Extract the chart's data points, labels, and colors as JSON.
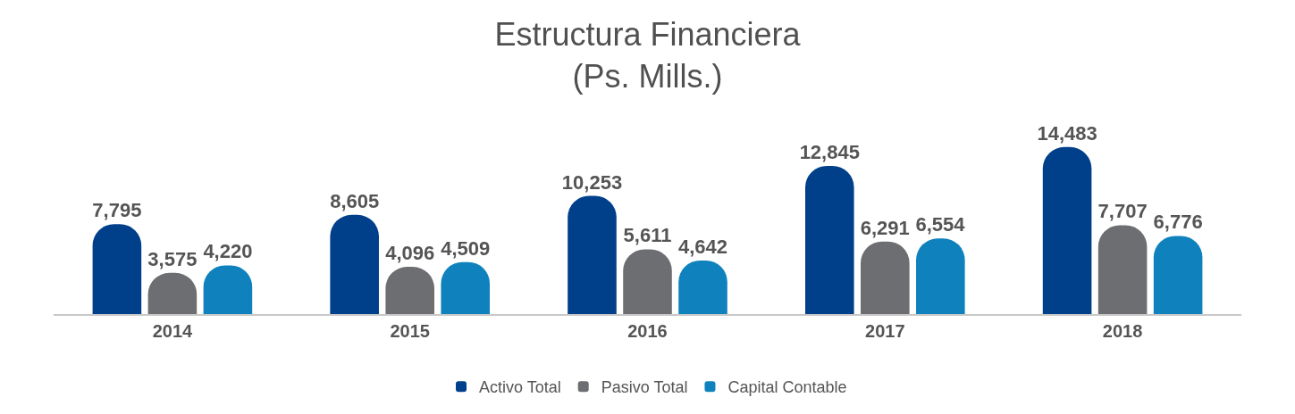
{
  "chart_data": {
    "type": "bar",
    "title": "Estructura Financiera\n(Ps. Mills.)",
    "categories": [
      "2014",
      "2015",
      "2016",
      "2017",
      "2018"
    ],
    "series": [
      {
        "name": "Activo Total",
        "color": "#003f8a",
        "values": [
          7795,
          8605,
          10253,
          12845,
          14483
        ],
        "value_labels": [
          "7,795",
          "8,605",
          "10,253",
          "12,845",
          "14,483"
        ]
      },
      {
        "name": "Pasivo Total",
        "color": "#6d6e71",
        "values": [
          3575,
          4096,
          5611,
          6291,
          7707
        ],
        "value_labels": [
          "3,575",
          "4,096",
          "5,611",
          "6,291",
          "7,707"
        ]
      },
      {
        "name": "Capital Contable",
        "color": "#0f82bd",
        "values": [
          4220,
          4509,
          4642,
          6554,
          6776
        ],
        "value_labels": [
          "4,220",
          "4,509",
          "4,642",
          "6,554",
          "6,776"
        ]
      }
    ],
    "tick_labels": "x",
    "legend": "bottom"
  }
}
